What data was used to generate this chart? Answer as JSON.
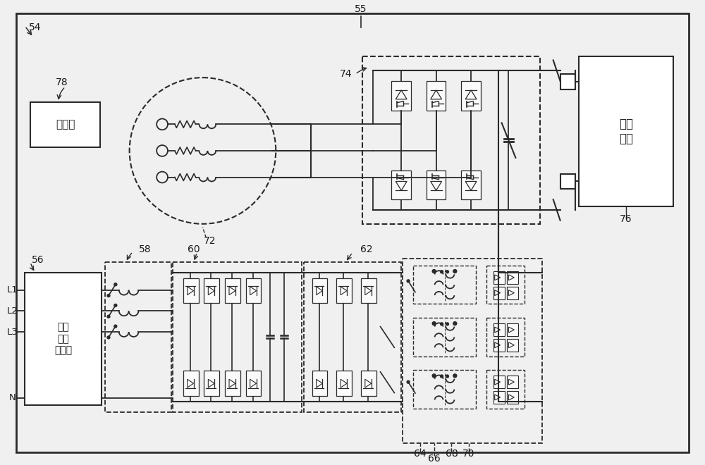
{
  "bg_color": "#f0f0f0",
  "line_color": "#2a2a2a",
  "box_fill": "#ffffff",
  "label_54": "54",
  "label_55": "55",
  "label_56": "56",
  "label_58": "58",
  "label_60": "60",
  "label_62": "62",
  "label_64": "64",
  "label_66": "66",
  "label_68": "68",
  "label_70": "70",
  "label_72": "72",
  "label_74": "74",
  "label_76": "76",
  "label_78": "78",
  "text_controller": "控制器",
  "text_emi": "电磁\n干扰\n滤波器",
  "text_battery": "高压\n电池",
  "text_L1": "L1",
  "text_L2": "L2",
  "text_L3": "L3",
  "text_N": "N"
}
